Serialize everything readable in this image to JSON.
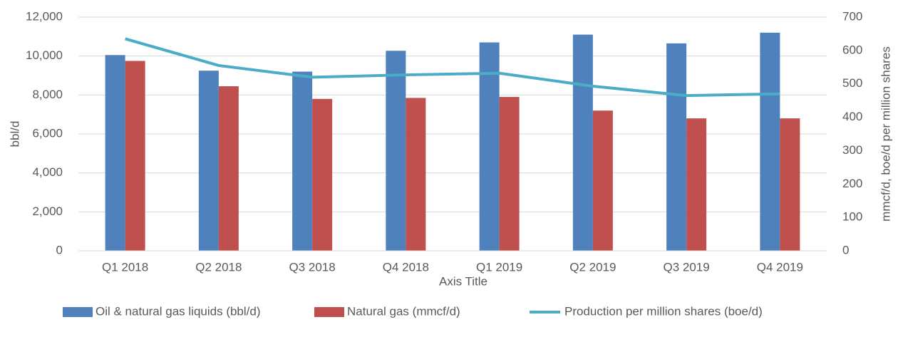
{
  "chart_data": {
    "type": "bar",
    "categories": [
      "Q1 2018",
      "Q2 2018",
      "Q3 2018",
      "Q4 2018",
      "Q1 2019",
      "Q2 2019",
      "Q3 2019",
      "Q4 2019"
    ],
    "series": [
      {
        "name": "Oil & natural gas liquids (bbl/d)",
        "color": "#4f81bd",
        "values": [
          10050,
          9250,
          9200,
          10270,
          10700,
          11100,
          10650,
          11200
        ]
      },
      {
        "name": "Natural gas (mmcf/d)",
        "color": "#c0504d",
        "values": [
          9750,
          8450,
          7800,
          7850,
          7900,
          7200,
          6800,
          6800
        ]
      },
      {
        "name": "Production per million shares (boe/d)",
        "color": "#4bacc6",
        "type": "line",
        "axis": "y2",
        "values": [
          635,
          555,
          520,
          527,
          532,
          493,
          465,
          470
        ]
      }
    ],
    "xlabel": "Axis Title",
    "ylabel": "bbl/d",
    "y2label": "mmcf/d, boe/d per million shares",
    "ylim": [
      0,
      12000
    ],
    "yticks": [
      0,
      {
        "value": 2000,
        "label": "2,000"
      },
      {
        "value": 4000,
        "label": "4,000"
      },
      {
        "value": 6000,
        "label": "6,000"
      },
      {
        "value": 8000,
        "label": "8,000"
      },
      {
        "value": 10000,
        "label": "10,000"
      },
      {
        "value": 12000,
        "label": "12,000"
      }
    ],
    "y2lim": [
      0,
      700
    ],
    "y2ticks": [
      0,
      100,
      200,
      300,
      400,
      500,
      600,
      700
    ],
    "grid": true,
    "legend": "bottom"
  }
}
